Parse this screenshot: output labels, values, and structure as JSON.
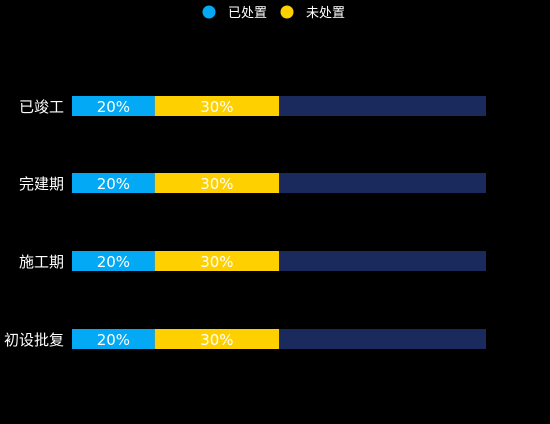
{
  "colors": {
    "background": "#000000",
    "track": "#1b2a5c",
    "text": "#ffffff"
  },
  "chart_data": {
    "type": "bar",
    "orientation": "horizontal",
    "stacked": true,
    "title": "",
    "xlabel": "",
    "ylabel": "",
    "xlim": [
      0,
      100
    ],
    "categories": [
      "已竣工",
      "完建期",
      "施工期",
      "初设批复"
    ],
    "series": [
      {
        "name": "已处置",
        "values": [
          20,
          20,
          20,
          20
        ],
        "color": "#03a9f4",
        "labels": [
          "20%",
          "20%",
          "20%",
          "20%"
        ]
      },
      {
        "name": "未处置",
        "values": [
          30,
          30,
          30,
          30
        ],
        "color": "#ffd000",
        "labels": [
          "30%",
          "30%",
          "30%",
          "30%"
        ]
      }
    ],
    "legend": {
      "position": "top-center",
      "marker": "circle"
    },
    "grid": false
  }
}
